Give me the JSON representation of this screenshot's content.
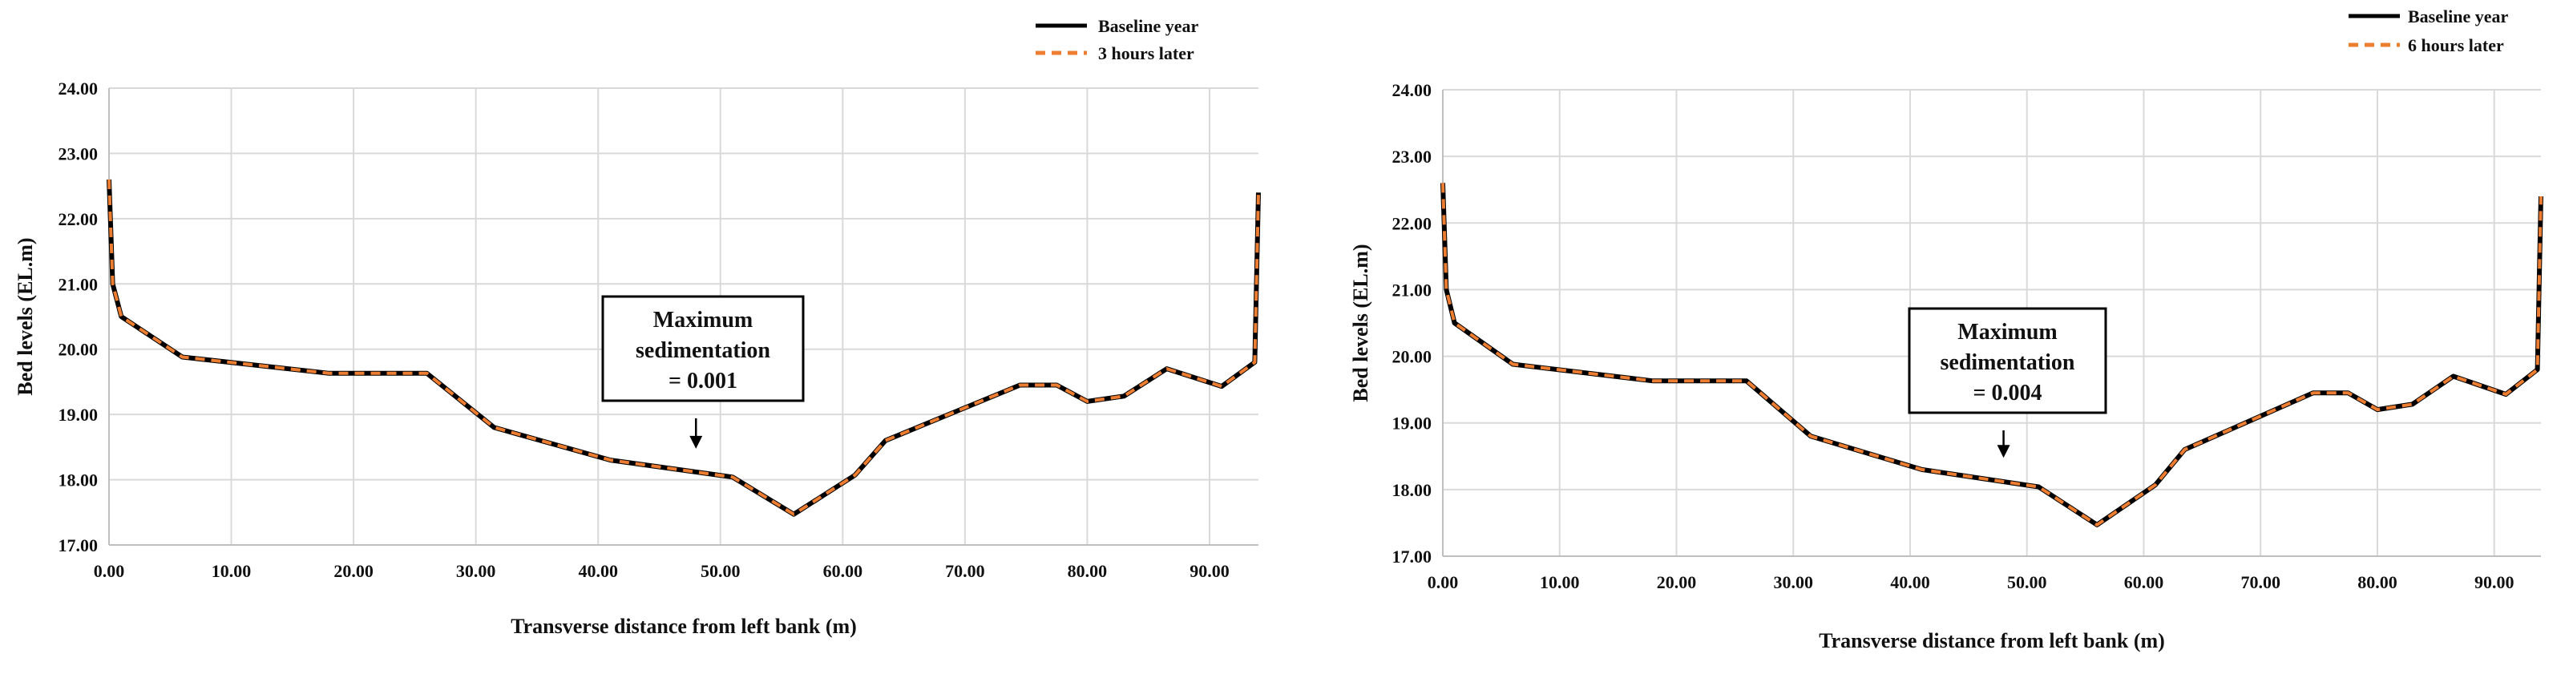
{
  "chart_data": [
    {
      "type": "line",
      "title": "",
      "xlabel": "Transverse distance from left bank (m)",
      "ylabel": "Bed levels (EL.m)",
      "xlim": [
        0,
        94
      ],
      "ylim": [
        17,
        24
      ],
      "xticks": [
        "0.00",
        "10.00",
        "20.00",
        "30.00",
        "40.00",
        "50.00",
        "60.00",
        "70.00",
        "80.00",
        "90.00"
      ],
      "yticks": [
        "17.00",
        "18.00",
        "19.00",
        "20.00",
        "21.00",
        "22.00",
        "23.00",
        "24.00"
      ],
      "grid": true,
      "legend_position": "top-right",
      "series": [
        {
          "name": "Baseline year",
          "color": "#000000",
          "style": "solid",
          "x": [
            0,
            0.3,
            1,
            6,
            18,
            26,
            31.5,
            41,
            51,
            56,
            61,
            63.5,
            74.5,
            77.5,
            80,
            83,
            86.5,
            91,
            93.7,
            94
          ],
          "y": [
            22.6,
            21,
            20.5,
            19.88,
            19.63,
            19.63,
            18.8,
            18.3,
            18.04,
            17.47,
            18.07,
            18.6,
            19.45,
            19.45,
            19.2,
            19.28,
            19.7,
            19.43,
            19.8,
            22.4
          ]
        },
        {
          "name": "3 hours later",
          "color": "#ED7D31",
          "style": "dashed",
          "x": [
            0,
            0.3,
            1,
            6,
            18,
            26,
            31.5,
            41,
            51,
            56,
            61,
            63.5,
            74.5,
            77.5,
            80,
            83,
            86.5,
            91,
            93.7,
            94
          ],
          "y": [
            22.6,
            21,
            20.5,
            19.88,
            19.63,
            19.63,
            18.8,
            18.3,
            18.04,
            17.47,
            18.07,
            18.6,
            19.45,
            19.45,
            19.2,
            19.28,
            19.7,
            19.43,
            19.8,
            22.4
          ]
        }
      ],
      "annotation": {
        "lines": [
          "Maximum",
          "sedimentation",
          "= 0.001"
        ],
        "arrow_x": 48,
        "arrow_y": 18.5
      }
    },
    {
      "type": "line",
      "title": "",
      "xlabel": "Transverse distance from left bank (m)",
      "ylabel": "Bed levels (EL.m)",
      "xlim": [
        0,
        94
      ],
      "ylim": [
        17,
        24
      ],
      "xticks": [
        "0.00",
        "10.00",
        "20.00",
        "30.00",
        "40.00",
        "50.00",
        "60.00",
        "70.00",
        "80.00",
        "90.00"
      ],
      "yticks": [
        "17.00",
        "18.00",
        "19.00",
        "20.00",
        "21.00",
        "22.00",
        "23.00",
        "24.00"
      ],
      "grid": true,
      "legend_position": "top-right",
      "series": [
        {
          "name": "Baseline year",
          "color": "#000000",
          "style": "solid",
          "x": [
            0,
            0.3,
            1,
            6,
            18,
            26,
            31.5,
            41,
            51,
            56,
            61,
            63.5,
            74.5,
            77.5,
            80,
            83,
            86.5,
            91,
            93.7,
            94
          ],
          "y": [
            22.6,
            21,
            20.5,
            19.88,
            19.63,
            19.63,
            18.8,
            18.3,
            18.04,
            17.47,
            18.07,
            18.6,
            19.45,
            19.45,
            19.2,
            19.28,
            19.7,
            19.43,
            19.8,
            22.4
          ]
        },
        {
          "name": "6 hours later",
          "color": "#ED7D31",
          "style": "dashed",
          "x": [
            0,
            0.3,
            1,
            6,
            18,
            26,
            31.5,
            41,
            51,
            56,
            61,
            63.5,
            74.5,
            77.5,
            80,
            83,
            86.5,
            91,
            93.7,
            94
          ],
          "y": [
            22.6,
            21,
            20.5,
            19.88,
            19.63,
            19.63,
            18.8,
            18.3,
            18.04,
            17.47,
            18.07,
            18.6,
            19.45,
            19.45,
            19.2,
            19.28,
            19.7,
            19.43,
            19.8,
            22.4
          ]
        }
      ],
      "annotation": {
        "lines": [
          "Maximum",
          "sedimentation",
          "= 0.004"
        ],
        "arrow_x": 48,
        "arrow_y": 18.5
      }
    }
  ]
}
